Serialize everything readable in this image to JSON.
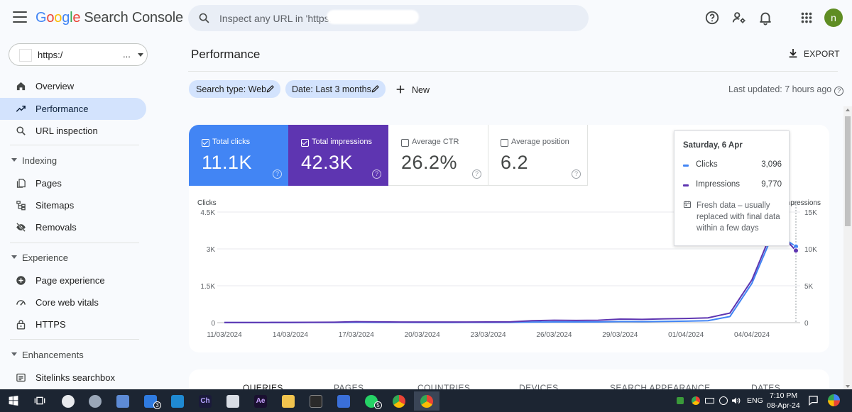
{
  "app": {
    "logo_letters": [
      "G",
      "o",
      "o",
      "g",
      "l",
      "e"
    ],
    "product": "Search Console",
    "search_placeholder": "Inspect any URL in 'https://",
    "avatar_letter": "n"
  },
  "property": {
    "value": "https:/",
    "ellipsis": "..."
  },
  "sidebar": {
    "items_top": [
      {
        "label": "Overview",
        "icon": "home-icon"
      },
      {
        "label": "Performance",
        "icon": "trending-up-icon",
        "active": true
      },
      {
        "label": "URL inspection",
        "icon": "search-icon"
      }
    ],
    "indexing": {
      "title": "Indexing",
      "items": [
        "Pages",
        "Sitemaps",
        "Removals"
      ]
    },
    "experience": {
      "title": "Experience",
      "items": [
        "Page experience",
        "Core web vitals",
        "HTTPS"
      ]
    },
    "enhancements": {
      "title": "Enhancements",
      "items": [
        "Sitelinks searchbox"
      ]
    }
  },
  "main": {
    "title": "Performance",
    "export_label": "EXPORT",
    "chips": [
      "Search type: Web",
      "Date: Last 3 months"
    ],
    "new_label": "New",
    "last_updated": "Last updated: 7 hours ago"
  },
  "metrics": [
    {
      "label": "Total clicks",
      "value": "11.1K",
      "checked": true,
      "color": "#4285f4"
    },
    {
      "label": "Total impressions",
      "value": "42.3K",
      "checked": true,
      "color": "#5e35b1"
    },
    {
      "label": "Average CTR",
      "value": "26.2%",
      "checked": false
    },
    {
      "label": "Average position",
      "value": "6.2",
      "checked": false
    }
  ],
  "chart_data": {
    "type": "line",
    "left_axis_label": "Clicks",
    "right_axis_label": "Impressions",
    "left_ticks": [
      "0",
      "1.5K",
      "3K",
      "4.5K"
    ],
    "right_ticks": [
      "0",
      "5K",
      "10K",
      "15K"
    ],
    "ylim_left": [
      0,
      4500
    ],
    "ylim_right": [
      0,
      15000
    ],
    "x_tick_labels": [
      "11/03/2024",
      "14/03/2024",
      "17/03/2024",
      "20/03/2024",
      "23/03/2024",
      "26/03/2024",
      "29/03/2024",
      "01/04/2024",
      "04/04/2024"
    ],
    "x_dates": [
      "11/03",
      "12/03",
      "13/03",
      "14/03",
      "15/03",
      "16/03",
      "17/03",
      "18/03",
      "19/03",
      "20/03",
      "21/03",
      "22/03",
      "23/03",
      "24/03",
      "25/03",
      "26/03",
      "27/03",
      "28/03",
      "29/03",
      "30/03",
      "31/03",
      "01/04",
      "02/04",
      "03/04",
      "04/04",
      "05/04",
      "06/04"
    ],
    "series": [
      {
        "name": "Clicks",
        "color": "#4285f4",
        "axis": "left",
        "values": [
          2,
          3,
          3,
          5,
          6,
          8,
          15,
          12,
          10,
          8,
          8,
          10,
          12,
          10,
          25,
          30,
          28,
          30,
          45,
          40,
          50,
          60,
          80,
          250,
          1600,
          3700,
          3096
        ]
      },
      {
        "name": "Impressions",
        "color": "#5e35b1",
        "axis": "right",
        "values": [
          20,
          25,
          30,
          40,
          50,
          60,
          130,
          110,
          90,
          80,
          80,
          90,
          100,
          110,
          260,
          320,
          300,
          330,
          480,
          450,
          520,
          560,
          650,
          1300,
          5800,
          13000,
          9770
        ]
      }
    ],
    "grid": true
  },
  "tooltip": {
    "date": "Saturday, 6 Apr",
    "rows": [
      {
        "label": "Clicks",
        "value": "3,096",
        "color": "#4285f4"
      },
      {
        "label": "Impressions",
        "value": "9,770",
        "color": "#5e35b1"
      }
    ],
    "note": "Fresh data – usually replaced with final data within a few days"
  },
  "tabs": [
    "QUERIES",
    "PAGES",
    "COUNTRIES",
    "DEVICES",
    "SEARCH APPEARANCE",
    "DATES"
  ],
  "taskbar": {
    "badges": [
      "3",
      "5"
    ],
    "time": "7:10 PM",
    "date": "08-Apr-24",
    "lang": "ENG",
    "app_labels": [
      "Ch",
      "Ae"
    ]
  }
}
